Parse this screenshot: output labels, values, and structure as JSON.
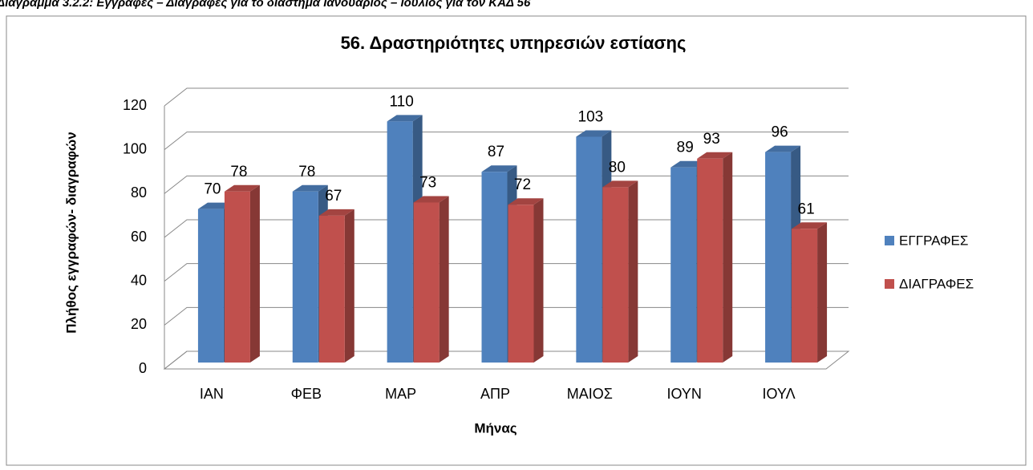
{
  "caption": "Διάγραμμα 3.2.2: Εγγραφές – Διαγραφές για το διάστημα Ιανουάριος – Ιούλιος για τον ΚΑΔ 56",
  "chart_data": {
    "type": "bar3d",
    "title": "56. Δραστηριότητες υπηρεσιών εστίασης",
    "x_label": "Μήνας",
    "y_label": "Πλήθος εγγραφών- διαγραφών",
    "categories": [
      "ΙΑΝ",
      "ΦΕΒ",
      "ΜΑΡ",
      "ΑΠΡ",
      "ΜΑΙΟΣ",
      "ΙΟΥΝ",
      "ΙΟΥΛ"
    ],
    "series": [
      {
        "name": "ΕΓΓΡΑΦΕΣ",
        "color": "#4f81bd",
        "values": [
          70,
          78,
          110,
          87,
          103,
          89,
          96
        ]
      },
      {
        "name": "ΔΙΑΓΡΑΦΕΣ",
        "color": "#c0504d",
        "values": [
          78,
          67,
          73,
          72,
          80,
          93,
          61
        ]
      }
    ],
    "ylim": [
      0,
      120
    ],
    "yticks": [
      0,
      20,
      40,
      60,
      80,
      100,
      120
    ],
    "grid": true,
    "legend": "right"
  }
}
